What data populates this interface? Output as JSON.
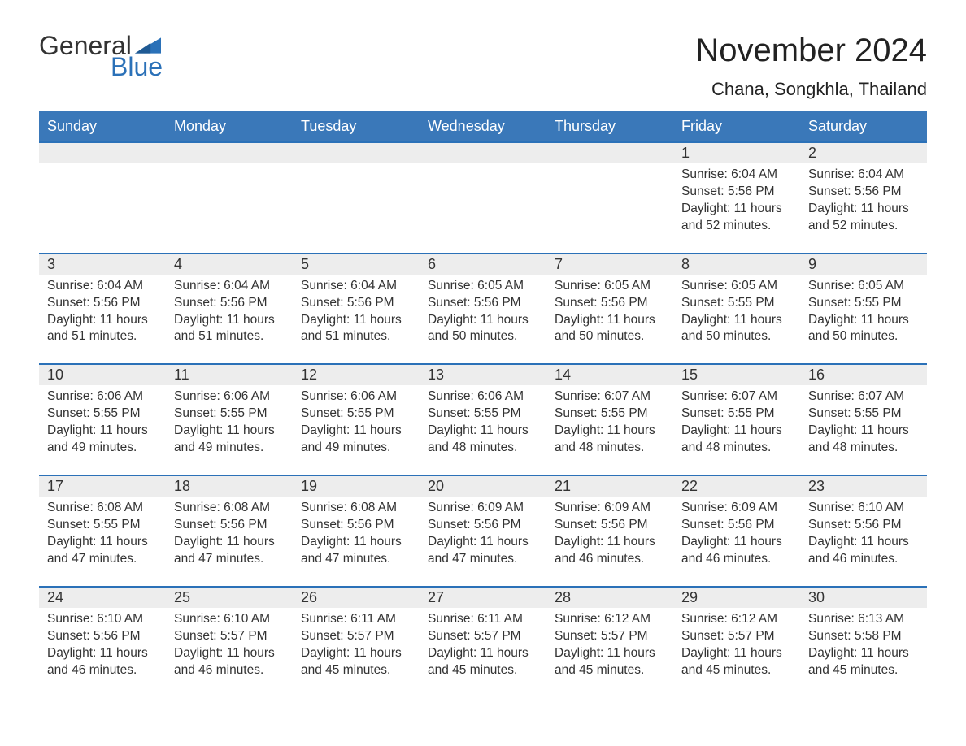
{
  "brand": {
    "word1": "General",
    "word2": "Blue",
    "text_color": "#333333",
    "accent_color": "#2b71b8"
  },
  "header": {
    "month_title": "November 2024",
    "location": "Chana, Songkhla, Thailand"
  },
  "styling": {
    "header_row_bg": "#3a78b9",
    "header_row_text": "#ffffff",
    "week_divider_color": "#2b71b8",
    "daynum_bg": "#ededed",
    "body_text_color": "#333333",
    "page_bg": "#ffffff",
    "month_title_fontsize": 40,
    "location_fontsize": 22,
    "weekday_fontsize": 18,
    "detail_fontsize": 15.5
  },
  "weekdays": [
    "Sunday",
    "Monday",
    "Tuesday",
    "Wednesday",
    "Thursday",
    "Friday",
    "Saturday"
  ],
  "weeks": [
    [
      {
        "day": "",
        "sunrise": "",
        "sunset": "",
        "daylight": ""
      },
      {
        "day": "",
        "sunrise": "",
        "sunset": "",
        "daylight": ""
      },
      {
        "day": "",
        "sunrise": "",
        "sunset": "",
        "daylight": ""
      },
      {
        "day": "",
        "sunrise": "",
        "sunset": "",
        "daylight": ""
      },
      {
        "day": "",
        "sunrise": "",
        "sunset": "",
        "daylight": ""
      },
      {
        "day": "1",
        "sunrise": "Sunrise: 6:04 AM",
        "sunset": "Sunset: 5:56 PM",
        "daylight": "Daylight: 11 hours and 52 minutes."
      },
      {
        "day": "2",
        "sunrise": "Sunrise: 6:04 AM",
        "sunset": "Sunset: 5:56 PM",
        "daylight": "Daylight: 11 hours and 52 minutes."
      }
    ],
    [
      {
        "day": "3",
        "sunrise": "Sunrise: 6:04 AM",
        "sunset": "Sunset: 5:56 PM",
        "daylight": "Daylight: 11 hours and 51 minutes."
      },
      {
        "day": "4",
        "sunrise": "Sunrise: 6:04 AM",
        "sunset": "Sunset: 5:56 PM",
        "daylight": "Daylight: 11 hours and 51 minutes."
      },
      {
        "day": "5",
        "sunrise": "Sunrise: 6:04 AM",
        "sunset": "Sunset: 5:56 PM",
        "daylight": "Daylight: 11 hours and 51 minutes."
      },
      {
        "day": "6",
        "sunrise": "Sunrise: 6:05 AM",
        "sunset": "Sunset: 5:56 PM",
        "daylight": "Daylight: 11 hours and 50 minutes."
      },
      {
        "day": "7",
        "sunrise": "Sunrise: 6:05 AM",
        "sunset": "Sunset: 5:56 PM",
        "daylight": "Daylight: 11 hours and 50 minutes."
      },
      {
        "day": "8",
        "sunrise": "Sunrise: 6:05 AM",
        "sunset": "Sunset: 5:55 PM",
        "daylight": "Daylight: 11 hours and 50 minutes."
      },
      {
        "day": "9",
        "sunrise": "Sunrise: 6:05 AM",
        "sunset": "Sunset: 5:55 PM",
        "daylight": "Daylight: 11 hours and 50 minutes."
      }
    ],
    [
      {
        "day": "10",
        "sunrise": "Sunrise: 6:06 AM",
        "sunset": "Sunset: 5:55 PM",
        "daylight": "Daylight: 11 hours and 49 minutes."
      },
      {
        "day": "11",
        "sunrise": "Sunrise: 6:06 AM",
        "sunset": "Sunset: 5:55 PM",
        "daylight": "Daylight: 11 hours and 49 minutes."
      },
      {
        "day": "12",
        "sunrise": "Sunrise: 6:06 AM",
        "sunset": "Sunset: 5:55 PM",
        "daylight": "Daylight: 11 hours and 49 minutes."
      },
      {
        "day": "13",
        "sunrise": "Sunrise: 6:06 AM",
        "sunset": "Sunset: 5:55 PM",
        "daylight": "Daylight: 11 hours and 48 minutes."
      },
      {
        "day": "14",
        "sunrise": "Sunrise: 6:07 AM",
        "sunset": "Sunset: 5:55 PM",
        "daylight": "Daylight: 11 hours and 48 minutes."
      },
      {
        "day": "15",
        "sunrise": "Sunrise: 6:07 AM",
        "sunset": "Sunset: 5:55 PM",
        "daylight": "Daylight: 11 hours and 48 minutes."
      },
      {
        "day": "16",
        "sunrise": "Sunrise: 6:07 AM",
        "sunset": "Sunset: 5:55 PM",
        "daylight": "Daylight: 11 hours and 48 minutes."
      }
    ],
    [
      {
        "day": "17",
        "sunrise": "Sunrise: 6:08 AM",
        "sunset": "Sunset: 5:55 PM",
        "daylight": "Daylight: 11 hours and 47 minutes."
      },
      {
        "day": "18",
        "sunrise": "Sunrise: 6:08 AM",
        "sunset": "Sunset: 5:56 PM",
        "daylight": "Daylight: 11 hours and 47 minutes."
      },
      {
        "day": "19",
        "sunrise": "Sunrise: 6:08 AM",
        "sunset": "Sunset: 5:56 PM",
        "daylight": "Daylight: 11 hours and 47 minutes."
      },
      {
        "day": "20",
        "sunrise": "Sunrise: 6:09 AM",
        "sunset": "Sunset: 5:56 PM",
        "daylight": "Daylight: 11 hours and 47 minutes."
      },
      {
        "day": "21",
        "sunrise": "Sunrise: 6:09 AM",
        "sunset": "Sunset: 5:56 PM",
        "daylight": "Daylight: 11 hours and 46 minutes."
      },
      {
        "day": "22",
        "sunrise": "Sunrise: 6:09 AM",
        "sunset": "Sunset: 5:56 PM",
        "daylight": "Daylight: 11 hours and 46 minutes."
      },
      {
        "day": "23",
        "sunrise": "Sunrise: 6:10 AM",
        "sunset": "Sunset: 5:56 PM",
        "daylight": "Daylight: 11 hours and 46 minutes."
      }
    ],
    [
      {
        "day": "24",
        "sunrise": "Sunrise: 6:10 AM",
        "sunset": "Sunset: 5:56 PM",
        "daylight": "Daylight: 11 hours and 46 minutes."
      },
      {
        "day": "25",
        "sunrise": "Sunrise: 6:10 AM",
        "sunset": "Sunset: 5:57 PM",
        "daylight": "Daylight: 11 hours and 46 minutes."
      },
      {
        "day": "26",
        "sunrise": "Sunrise: 6:11 AM",
        "sunset": "Sunset: 5:57 PM",
        "daylight": "Daylight: 11 hours and 45 minutes."
      },
      {
        "day": "27",
        "sunrise": "Sunrise: 6:11 AM",
        "sunset": "Sunset: 5:57 PM",
        "daylight": "Daylight: 11 hours and 45 minutes."
      },
      {
        "day": "28",
        "sunrise": "Sunrise: 6:12 AM",
        "sunset": "Sunset: 5:57 PM",
        "daylight": "Daylight: 11 hours and 45 minutes."
      },
      {
        "day": "29",
        "sunrise": "Sunrise: 6:12 AM",
        "sunset": "Sunset: 5:57 PM",
        "daylight": "Daylight: 11 hours and 45 minutes."
      },
      {
        "day": "30",
        "sunrise": "Sunrise: 6:13 AM",
        "sunset": "Sunset: 5:58 PM",
        "daylight": "Daylight: 11 hours and 45 minutes."
      }
    ]
  ]
}
